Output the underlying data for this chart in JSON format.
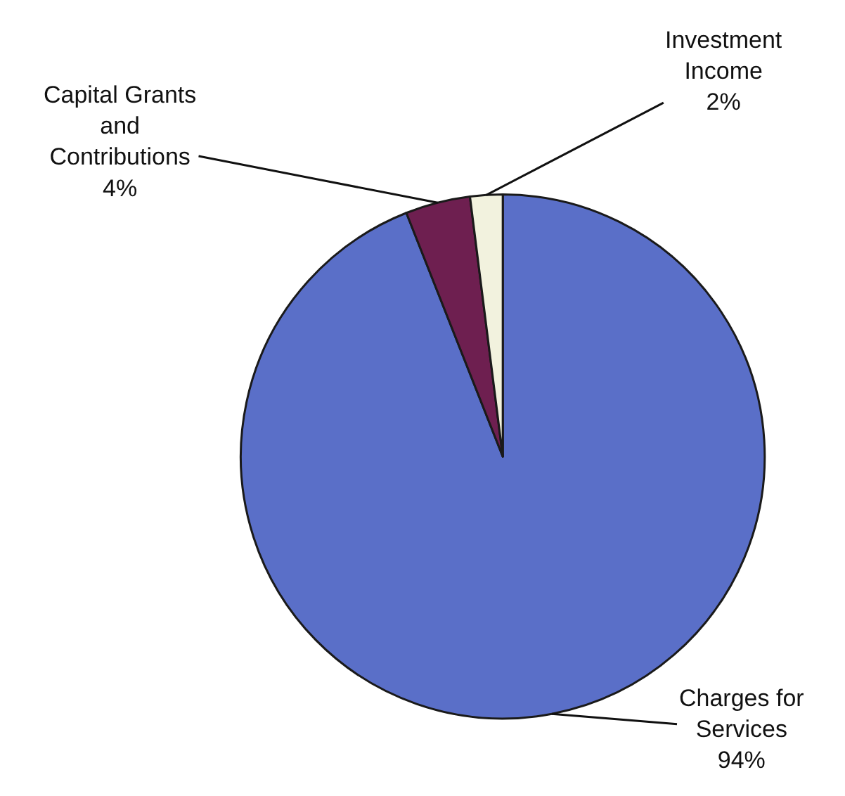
{
  "chart_data": {
    "type": "pie",
    "categories": [
      "Charges for Services",
      "Capital Grants and Contributions",
      "Investment Income"
    ],
    "values": [
      94,
      4,
      2
    ],
    "value_labels": [
      "94%",
      "4%",
      "2%"
    ],
    "colors": [
      "#5a6fc8",
      "#6e1f50",
      "#f2f2de"
    ]
  }
}
